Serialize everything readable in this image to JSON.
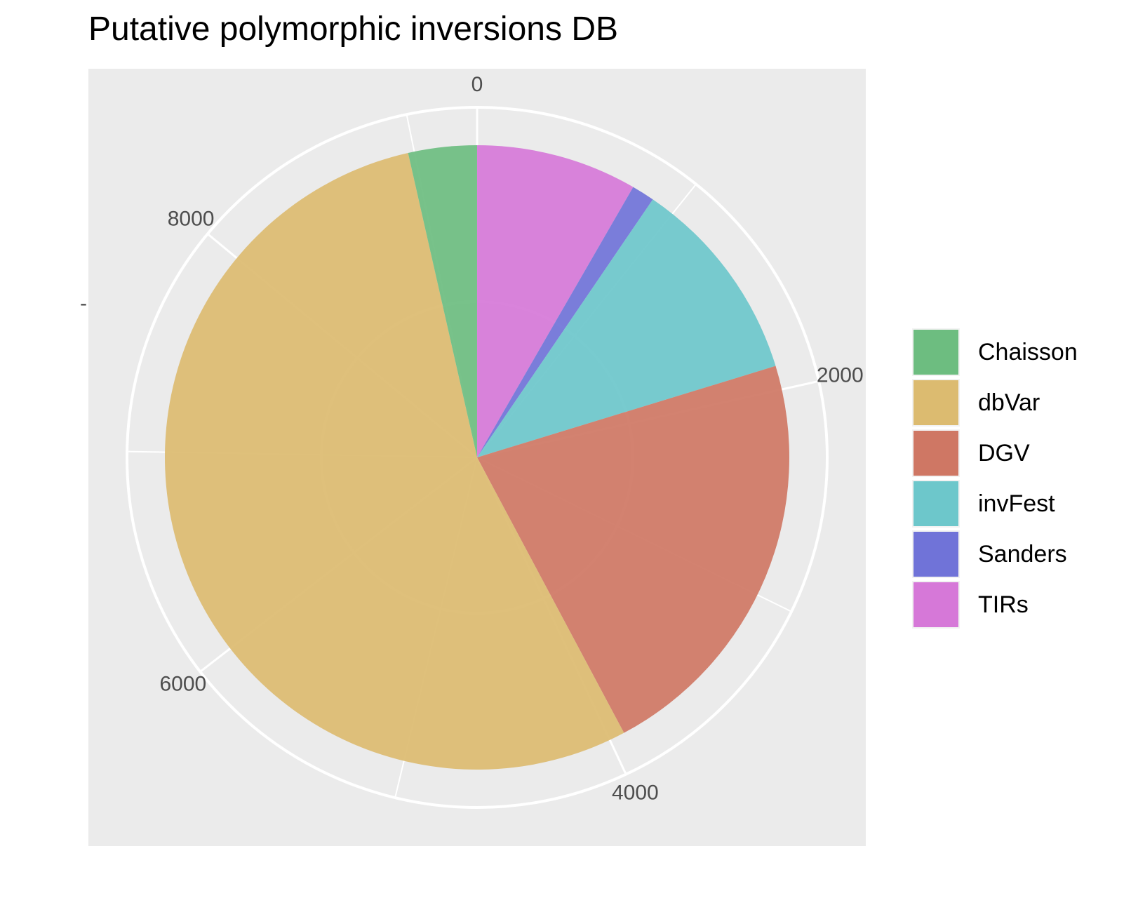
{
  "chart_data": {
    "type": "pie",
    "title": "Putative polymorphic inversions DB",
    "xlabel": "",
    "ylabel": "",
    "ytick_label": "-",
    "angle_axis": {
      "range": [
        0,
        9300
      ],
      "ticks": [
        0,
        2000,
        4000,
        6000,
        8000
      ],
      "labels": [
        "0",
        "2000",
        "4000",
        "6000",
        "8000"
      ]
    },
    "slices": [
      {
        "name": "TIRs",
        "value": 775,
        "color": "#d678d8"
      },
      {
        "name": "Sanders",
        "value": 110,
        "color": "#7073d8"
      },
      {
        "name": "invFest",
        "value": 1000,
        "color": "#6dc7cb"
      },
      {
        "name": "DGV",
        "value": 2040,
        "color": "#cf7764"
      },
      {
        "name": "dbVar",
        "value": 5045,
        "color": "#dcbb70"
      },
      {
        "name": "Chaisson",
        "value": 330,
        "color": "#6dbd80"
      }
    ],
    "legend": {
      "position": "right",
      "items": [
        {
          "label": "Chaisson",
          "color": "#6dbd80"
        },
        {
          "label": "dbVar",
          "color": "#dcbb70"
        },
        {
          "label": "DGV",
          "color": "#cf7764"
        },
        {
          "label": "invFest",
          "color": "#6dc7cb"
        },
        {
          "label": "Sanders",
          "color": "#7073d8"
        },
        {
          "label": "TIRs",
          "color": "#d678d8"
        }
      ]
    },
    "grid": true,
    "panel_color": "#ebebeb"
  }
}
